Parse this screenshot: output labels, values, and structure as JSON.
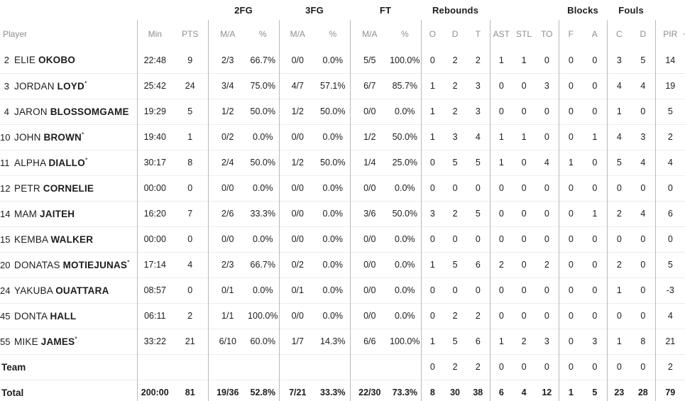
{
  "colors": {
    "text": "#1c1c1c",
    "header_text": "#8e8e8e",
    "row_divider": "#ededed",
    "column_divider": "#b9b9b9"
  },
  "table": {
    "group_headers": [
      {
        "label": "",
        "span": 3
      },
      {
        "label": "2FG",
        "span": 2
      },
      {
        "label": "3FG",
        "span": 2
      },
      {
        "label": "FT",
        "span": 2
      },
      {
        "label": "Rebounds",
        "span": 3
      },
      {
        "label": "",
        "span": 3
      },
      {
        "label": "Blocks",
        "span": 2
      },
      {
        "label": "Fouls",
        "span": 2
      },
      {
        "label": "",
        "span": 1
      }
    ],
    "columns": [
      "Player",
      "Min",
      "PTS",
      "M/A",
      "%",
      "M/A",
      "%",
      "M/A",
      "%",
      "O",
      "D",
      "T",
      "AST",
      "STL",
      "TO",
      "F",
      "A",
      "C",
      "D",
      "PIR"
    ],
    "truncated_next_column": "-",
    "starter_mark": "*",
    "players": [
      {
        "number": "2",
        "first": "ELIE",
        "last": "OKOBO",
        "starter": false,
        "stats": [
          "22:48",
          "9",
          "2/3",
          "66.7%",
          "0/0",
          "0.0%",
          "5/5",
          "100.0%",
          "0",
          "2",
          "2",
          "1",
          "1",
          "0",
          "0",
          "0",
          "3",
          "5",
          "14"
        ]
      },
      {
        "number": "3",
        "first": "JORDAN",
        "last": "LOYD",
        "starter": true,
        "stats": [
          "25:42",
          "24",
          "3/4",
          "75.0%",
          "4/7",
          "57.1%",
          "6/7",
          "85.7%",
          "1",
          "2",
          "3",
          "0",
          "0",
          "3",
          "0",
          "0",
          "4",
          "4",
          "19"
        ]
      },
      {
        "number": "4",
        "first": "JARON",
        "last": "BLOSSOMGAME",
        "starter": false,
        "stats": [
          "19:29",
          "5",
          "1/2",
          "50.0%",
          "1/2",
          "50.0%",
          "0/0",
          "0.0%",
          "1",
          "2",
          "3",
          "0",
          "0",
          "0",
          "0",
          "0",
          "1",
          "0",
          "5"
        ]
      },
      {
        "number": "10",
        "first": "JOHN",
        "last": "BROWN",
        "starter": true,
        "stats": [
          "19:40",
          "1",
          "0/2",
          "0.0%",
          "0/0",
          "0.0%",
          "1/2",
          "50.0%",
          "1",
          "3",
          "4",
          "1",
          "1",
          "0",
          "0",
          "1",
          "4",
          "3",
          "2"
        ]
      },
      {
        "number": "11",
        "first": "ALPHA",
        "last": "DIALLO",
        "starter": true,
        "stats": [
          "30:17",
          "8",
          "2/4",
          "50.0%",
          "1/2",
          "50.0%",
          "1/4",
          "25.0%",
          "0",
          "5",
          "5",
          "1",
          "0",
          "4",
          "1",
          "0",
          "5",
          "4",
          "4"
        ]
      },
      {
        "number": "12",
        "first": "PETR",
        "last": "CORNELIE",
        "starter": false,
        "stats": [
          "00:00",
          "0",
          "0/0",
          "0.0%",
          "0/0",
          "0.0%",
          "0/0",
          "0.0%",
          "0",
          "0",
          "0",
          "0",
          "0",
          "0",
          "0",
          "0",
          "0",
          "0",
          "0"
        ]
      },
      {
        "number": "14",
        "first": "MAM",
        "last": "JAITEH",
        "starter": false,
        "stats": [
          "16:20",
          "7",
          "2/6",
          "33.3%",
          "0/0",
          "0.0%",
          "3/6",
          "50.0%",
          "3",
          "2",
          "5",
          "0",
          "0",
          "0",
          "0",
          "1",
          "2",
          "4",
          "6"
        ]
      },
      {
        "number": "15",
        "first": "KEMBA",
        "last": "WALKER",
        "starter": false,
        "stats": [
          "00:00",
          "0",
          "0/0",
          "0.0%",
          "0/0",
          "0.0%",
          "0/0",
          "0.0%",
          "0",
          "0",
          "0",
          "0",
          "0",
          "0",
          "0",
          "0",
          "0",
          "0",
          "0"
        ]
      },
      {
        "number": "20",
        "first": "DONATAS",
        "last": "MOTIEJUNAS",
        "starter": true,
        "stats": [
          "17:14",
          "4",
          "2/3",
          "66.7%",
          "0/2",
          "0.0%",
          "0/0",
          "0.0%",
          "1",
          "5",
          "6",
          "2",
          "0",
          "2",
          "0",
          "0",
          "2",
          "0",
          "5"
        ]
      },
      {
        "number": "24",
        "first": "YAKUBA",
        "last": "OUATTARA",
        "starter": false,
        "stats": [
          "08:57",
          "0",
          "0/1",
          "0.0%",
          "0/1",
          "0.0%",
          "0/0",
          "0.0%",
          "0",
          "0",
          "0",
          "0",
          "0",
          "0",
          "0",
          "0",
          "1",
          "0",
          "-3"
        ]
      },
      {
        "number": "45",
        "first": "DONTA",
        "last": "HALL",
        "starter": false,
        "stats": [
          "06:11",
          "2",
          "1/1",
          "100.0%",
          "0/0",
          "0.0%",
          "0/0",
          "0.0%",
          "0",
          "2",
          "2",
          "0",
          "0",
          "0",
          "0",
          "0",
          "0",
          "0",
          "4"
        ]
      },
      {
        "number": "55",
        "first": "MIKE",
        "last": "JAMES",
        "starter": true,
        "stats": [
          "33:22",
          "21",
          "6/10",
          "60.0%",
          "1/7",
          "14.3%",
          "6/6",
          "100.0%",
          "1",
          "5",
          "6",
          "1",
          "2",
          "3",
          "0",
          "3",
          "1",
          "8",
          "21"
        ]
      }
    ],
    "team_row": {
      "label": "Team",
      "stats": [
        "",
        "",
        "",
        "",
        "",
        "",
        "",
        "",
        "0",
        "2",
        "2",
        "0",
        "0",
        "0",
        "0",
        "0",
        "0",
        "0",
        "2"
      ]
    },
    "total_row": {
      "label": "Total",
      "stats": [
        "200:00",
        "81",
        "19/36",
        "52.8%",
        "7/21",
        "33.3%",
        "22/30",
        "73.3%",
        "8",
        "30",
        "38",
        "6",
        "4",
        "12",
        "1",
        "5",
        "23",
        "28",
        "79"
      ]
    }
  }
}
